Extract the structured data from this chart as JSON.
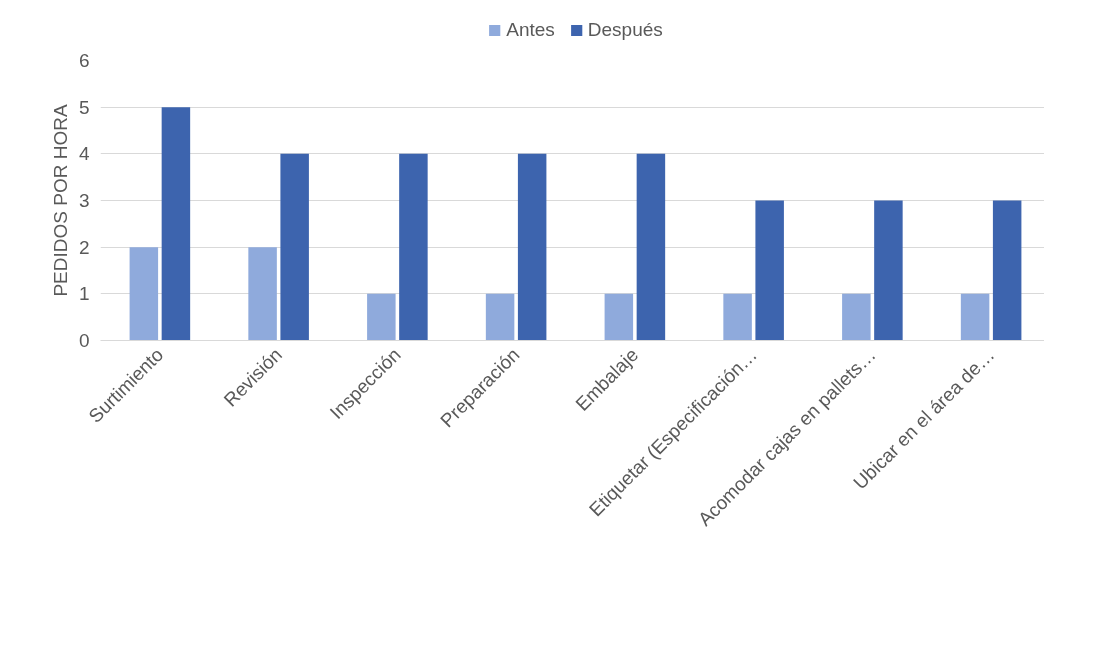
{
  "chart_data": {
    "type": "bar",
    "ylabel": "PEDIDOS POR HORA",
    "categories": [
      "Surtimiento",
      "Revisión",
      "Inspección",
      "Preparación",
      "Embalaje",
      "Etiquetar (Especificación…",
      "Acomodar cajas en pallets…",
      "Ubicar en el área de…"
    ],
    "series": [
      {
        "name": "Antes",
        "color": "#8faadc",
        "values": [
          2,
          2,
          1,
          1,
          1,
          1,
          1,
          1
        ]
      },
      {
        "name": "Después",
        "color": "#3d64ae",
        "values": [
          5,
          4,
          4,
          4,
          4,
          3,
          3,
          3
        ]
      }
    ],
    "ylim": [
      0,
      6
    ],
    "yticks": [
      0,
      1,
      2,
      3,
      4,
      5,
      6
    ],
    "grid": "y",
    "legend": "top"
  }
}
